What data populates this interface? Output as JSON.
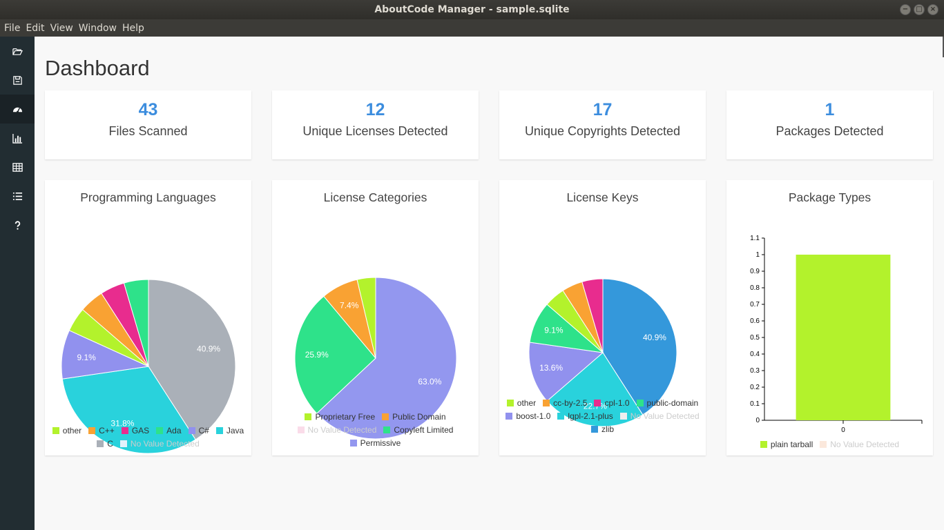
{
  "window": {
    "title": "AboutCode Manager - sample.sqlite",
    "buttons": [
      "−",
      "□",
      "×"
    ]
  },
  "menu": [
    "File",
    "Edit",
    "View",
    "Window",
    "Help"
  ],
  "sidebar": [
    {
      "name": "open-icon"
    },
    {
      "name": "save-icon"
    },
    {
      "name": "dashboard-icon",
      "active": true
    },
    {
      "name": "chart-icon"
    },
    {
      "name": "table-icon"
    },
    {
      "name": "list-icon"
    },
    {
      "name": "help-icon"
    }
  ],
  "page": {
    "title": "Dashboard"
  },
  "stats": [
    {
      "value": "43",
      "label": "Files Scanned"
    },
    {
      "value": "12",
      "label": "Unique Licenses Detected"
    },
    {
      "value": "17",
      "label": "Unique Copyrights Detected"
    },
    {
      "value": "1",
      "label": "Packages Detected"
    }
  ],
  "chart_data": [
    {
      "type": "pie",
      "title": "Programming Languages",
      "slices": [
        {
          "label": "C",
          "value": 40.9,
          "color": "#aab0b8",
          "text": "40.9%"
        },
        {
          "label": "Java",
          "value": 31.8,
          "color": "#29d2dc",
          "text": "31.8%"
        },
        {
          "label": "C#",
          "value": 9.1,
          "color": "#9191ee",
          "text": "9.1%"
        },
        {
          "label": "other",
          "value": 4.55,
          "color": "#b3f22c",
          "text": ""
        },
        {
          "label": "C++",
          "value": 4.55,
          "color": "#f9a233",
          "text": ""
        },
        {
          "label": "GAS",
          "value": 4.55,
          "color": "#e82c8e",
          "text": ""
        },
        {
          "label": "Ada",
          "value": 4.55,
          "color": "#2ee28a",
          "text": ""
        }
      ],
      "legend": [
        {
          "label": "other",
          "color": "#b3f22c"
        },
        {
          "label": "C++",
          "color": "#f9a233"
        },
        {
          "label": "GAS",
          "color": "#e82c8e"
        },
        {
          "label": "Ada",
          "color": "#2ee28a"
        },
        {
          "label": "C#",
          "color": "#9191ee"
        },
        {
          "label": "Java",
          "color": "#29d2dc"
        },
        {
          "label": "C",
          "color": "#aab0b8"
        },
        {
          "label": "No Value Detected",
          "color": "#e3f1fb",
          "dim": true
        }
      ]
    },
    {
      "type": "pie",
      "title": "License Categories",
      "slices": [
        {
          "label": "Permissive",
          "value": 63.0,
          "color": "#9397ef",
          "text": "63.0%"
        },
        {
          "label": "Copyleft Limited",
          "value": 25.9,
          "color": "#2ee28a",
          "text": "25.9%"
        },
        {
          "label": "Public Domain",
          "value": 7.4,
          "color": "#f9a233",
          "text": "7.4%"
        },
        {
          "label": "Proprietary Free",
          "value": 3.7,
          "color": "#b3f22c",
          "text": ""
        }
      ],
      "legend": [
        {
          "label": "Proprietary Free",
          "color": "#b3f22c"
        },
        {
          "label": "Public Domain",
          "color": "#f9a233"
        },
        {
          "label": "No Value Detected",
          "color": "#fadce9",
          "dim": true
        },
        {
          "label": "Copyleft Limited",
          "color": "#2ee28a"
        },
        {
          "label": "Permissive",
          "color": "#9397ef"
        }
      ]
    },
    {
      "type": "pie",
      "title": "License Keys",
      "slices": [
        {
          "label": "zlib",
          "value": 40.9,
          "color": "#3498db",
          "text": "40.9%"
        },
        {
          "label": "lgpl-2.1-plus",
          "value": 22.7,
          "color": "#29d2dc",
          "text": "22.7%"
        },
        {
          "label": "boost-1.0",
          "value": 13.6,
          "color": "#9191ee",
          "text": "13.6%"
        },
        {
          "label": "public-domain",
          "value": 9.1,
          "color": "#2ee28a",
          "text": "9.1%"
        },
        {
          "label": "other",
          "value": 4.55,
          "color": "#b3f22c",
          "text": ""
        },
        {
          "label": "cc-by-2.5",
          "value": 4.55,
          "color": "#f9a233",
          "text": ""
        },
        {
          "label": "cpl-1.0",
          "value": 4.55,
          "color": "#e82c8e",
          "text": ""
        }
      ],
      "legend": [
        {
          "label": "other",
          "color": "#b3f22c"
        },
        {
          "label": "cc-by-2.5",
          "color": "#f9a233"
        },
        {
          "label": "cpl-1.0",
          "color": "#e82c8e"
        },
        {
          "label": "public-domain",
          "color": "#2ee28a"
        },
        {
          "label": "boost-1.0",
          "color": "#9191ee"
        },
        {
          "label": "lgpl-2.1-plus",
          "color": "#29d2dc"
        },
        {
          "label": "No Value Detected",
          "color": "#eeeeee",
          "dim": true
        },
        {
          "label": "zlib",
          "color": "#3498db"
        }
      ]
    },
    {
      "type": "bar",
      "title": "Package Types",
      "categories": [
        "0"
      ],
      "values": [
        1
      ],
      "ylim": [
        0,
        1.1
      ],
      "yticks": [
        "0",
        "0.1",
        "0.2",
        "0.3",
        "0.4",
        "0.5",
        "0.6",
        "0.7",
        "0.8",
        "0.9",
        "1",
        "1.1"
      ],
      "bar_color": "#b3f22c",
      "legend": [
        {
          "label": "plain tarball",
          "color": "#b3f22c"
        },
        {
          "label": "No Value Detected",
          "color": "#fbe8dc",
          "dim": true
        }
      ]
    }
  ]
}
